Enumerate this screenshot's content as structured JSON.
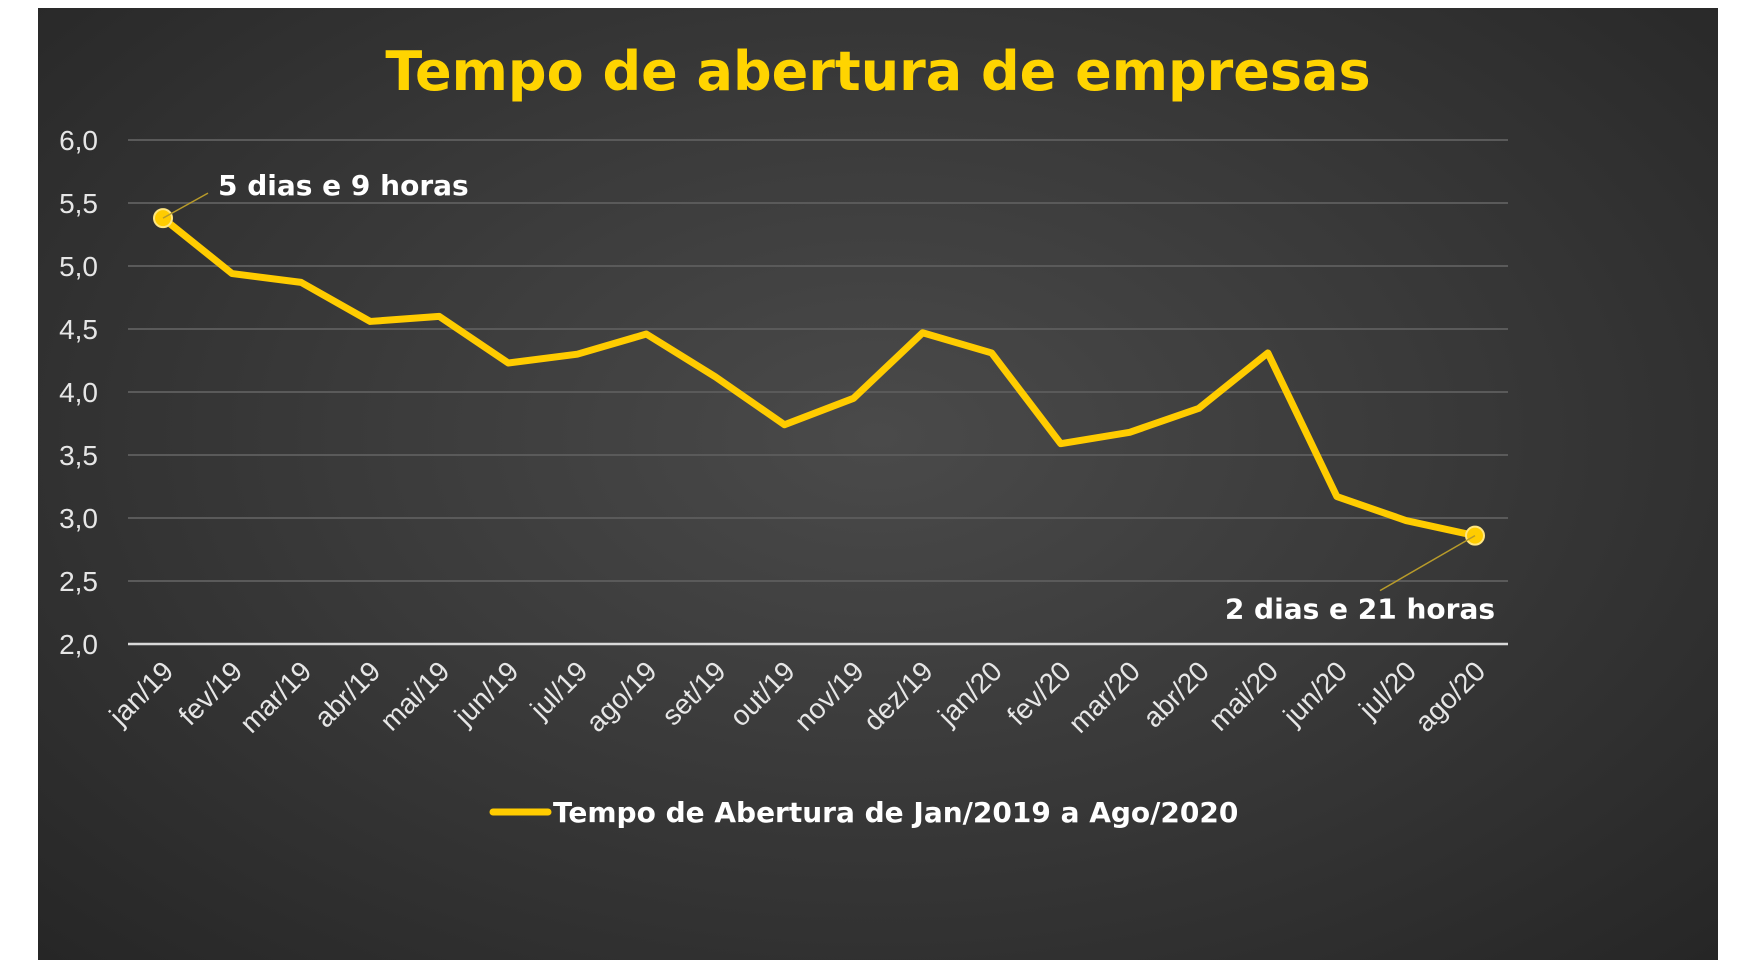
{
  "chart_data": {
    "type": "line",
    "title": "Tempo de abertura de empresas",
    "xlabel": "",
    "ylabel": "",
    "ylim": [
      2.0,
      6.0
    ],
    "yticks": [
      2.0,
      2.5,
      3.0,
      3.5,
      4.0,
      4.5,
      5.0,
      5.5,
      6.0
    ],
    "ytick_labels": [
      "2,0",
      "2,5",
      "3,0",
      "3,5",
      "4,0",
      "4,5",
      "5,0",
      "5,5",
      "6,0"
    ],
    "categories": [
      "jan/19",
      "fev/19",
      "mar/19",
      "abr/19",
      "mai/19",
      "jun/19",
      "jul/19",
      "ago/19",
      "set/19",
      "out/19",
      "nov/19",
      "dez/19",
      "jan/20",
      "fev/20",
      "mar/20",
      "abr/20",
      "mai/20",
      "jun/20",
      "jul/20",
      "ago/20"
    ],
    "series": [
      {
        "name": "Tempo de Abertura de Jan/2019 a Ago/2020",
        "color": "#ffcc00",
        "values": [
          5.38,
          4.94,
          4.87,
          4.56,
          4.6,
          4.23,
          4.3,
          4.46,
          4.12,
          3.74,
          3.95,
          4.47,
          4.31,
          3.59,
          3.68,
          3.87,
          4.31,
          3.17,
          2.98,
          2.86
        ]
      }
    ],
    "annotations": [
      {
        "text": "5 dias e 9 horas",
        "category": "jan/19",
        "value": 5.38
      },
      {
        "text": "2 dias e 21 horas",
        "category": "ago/20",
        "value": 2.86
      }
    ],
    "legend_position": "bottom",
    "grid": true
  }
}
